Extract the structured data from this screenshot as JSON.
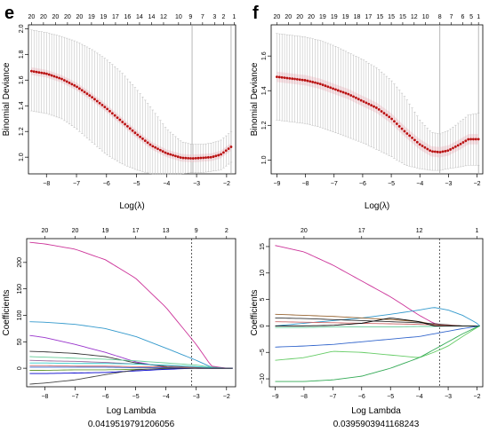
{
  "panels": {
    "e": {
      "letter": "e"
    },
    "f": {
      "letter": "f"
    }
  },
  "chart_data": [
    {
      "id": "e",
      "type": "scatter",
      "title": "",
      "xlabel": "Log(λ)",
      "ylabel": "Binomial Deviance",
      "xlim": [
        -8.6,
        -1.7
      ],
      "ylim": [
        0.87,
        2.03
      ],
      "x_ticks": [
        -8,
        -7,
        -6,
        -5,
        -4,
        -3,
        -2
      ],
      "y_ticks": [
        1.0,
        1.2,
        1.4,
        1.6,
        1.8,
        2.0
      ],
      "y_tick_labels": [
        "1.0",
        "1.2",
        "1.4",
        "1.6",
        "1.8",
        "2.0"
      ],
      "top_ticks": [
        {
          "x": -8.5,
          "label": "20"
        },
        {
          "x": -8.1,
          "label": "20"
        },
        {
          "x": -7.7,
          "label": "20"
        },
        {
          "x": -7.3,
          "label": "20"
        },
        {
          "x": -6.9,
          "label": "20"
        },
        {
          "x": -6.5,
          "label": "19"
        },
        {
          "x": -6.1,
          "label": "19"
        },
        {
          "x": -5.7,
          "label": "17"
        },
        {
          "x": -5.3,
          "label": "16"
        },
        {
          "x": -4.9,
          "label": "14"
        },
        {
          "x": -4.5,
          "label": "14"
        },
        {
          "x": -4.1,
          "label": "12"
        },
        {
          "x": -3.6,
          "label": "10"
        },
        {
          "x": -3.2,
          "label": "9"
        },
        {
          "x": -2.8,
          "label": "7"
        },
        {
          "x": -2.4,
          "label": "3"
        },
        {
          "x": -2.1,
          "label": "2"
        },
        {
          "x": -1.75,
          "label": "1"
        }
      ],
      "vlines": [
        -3.15,
        -1.85
      ],
      "curve": {
        "x": [
          -8.5,
          -8.0,
          -7.5,
          -7.0,
          -6.5,
          -6.0,
          -5.5,
          -5.0,
          -4.5,
          -4.0,
          -3.5,
          -3.15,
          -2.8,
          -2.5,
          -2.2,
          -1.85
        ],
        "mean": [
          1.67,
          1.65,
          1.61,
          1.55,
          1.47,
          1.38,
          1.28,
          1.18,
          1.09,
          1.03,
          0.995,
          0.99,
          0.995,
          1.0,
          1.02,
          1.08
        ],
        "upper": [
          1.99,
          1.97,
          1.94,
          1.9,
          1.84,
          1.76,
          1.66,
          1.53,
          1.38,
          1.22,
          1.12,
          1.1,
          1.1,
          1.11,
          1.13,
          1.2
        ],
        "lower": [
          1.36,
          1.34,
          1.3,
          1.22,
          1.12,
          1.02,
          0.95,
          0.9,
          0.87,
          0.87,
          0.87,
          0.88,
          0.88,
          0.89,
          0.9,
          0.96
        ]
      }
    },
    {
      "id": "f",
      "type": "scatter",
      "title": "",
      "xlabel": "Log(λ)",
      "ylabel": "Binomial Deviance",
      "xlim": [
        -9.2,
        -1.8
      ],
      "ylim": [
        0.92,
        1.78
      ],
      "x_ticks": [
        -9,
        -8,
        -7,
        -6,
        -5,
        -4,
        -3,
        -2
      ],
      "y_ticks": [
        1.0,
        1.2,
        1.4,
        1.6
      ],
      "y_tick_labels": [
        "1.0",
        "1.2",
        "1.4",
        "1.6"
      ],
      "top_ticks": [
        {
          "x": -9.0,
          "label": "20"
        },
        {
          "x": -8.6,
          "label": "20"
        },
        {
          "x": -8.2,
          "label": "20"
        },
        {
          "x": -7.8,
          "label": "20"
        },
        {
          "x": -7.4,
          "label": "19"
        },
        {
          "x": -7.0,
          "label": "19"
        },
        {
          "x": -6.6,
          "label": "19"
        },
        {
          "x": -6.2,
          "label": "18"
        },
        {
          "x": -5.8,
          "label": "17"
        },
        {
          "x": -5.4,
          "label": "15"
        },
        {
          "x": -5.0,
          "label": "15"
        },
        {
          "x": -4.6,
          "label": "15"
        },
        {
          "x": -4.2,
          "label": "12"
        },
        {
          "x": -3.8,
          "label": "10"
        },
        {
          "x": -3.3,
          "label": "8"
        },
        {
          "x": -2.9,
          "label": "7"
        },
        {
          "x": -2.5,
          "label": "6"
        },
        {
          "x": -2.2,
          "label": "5"
        },
        {
          "x": -1.95,
          "label": "1"
        }
      ],
      "vlines": [
        -3.3,
        -1.95
      ],
      "curve": {
        "x": [
          -9.0,
          -8.5,
          -8.0,
          -7.5,
          -7.0,
          -6.5,
          -6.0,
          -5.5,
          -5.0,
          -4.5,
          -4.0,
          -3.6,
          -3.3,
          -3.0,
          -2.6,
          -2.3,
          -1.95
        ],
        "mean": [
          1.48,
          1.47,
          1.46,
          1.44,
          1.41,
          1.38,
          1.34,
          1.3,
          1.24,
          1.16,
          1.09,
          1.05,
          1.045,
          1.055,
          1.09,
          1.12,
          1.12
        ],
        "upper": [
          1.73,
          1.72,
          1.71,
          1.69,
          1.66,
          1.62,
          1.58,
          1.53,
          1.46,
          1.36,
          1.23,
          1.16,
          1.15,
          1.17,
          1.22,
          1.26,
          1.27
        ],
        "lower": [
          1.23,
          1.22,
          1.21,
          1.19,
          1.16,
          1.13,
          1.1,
          1.06,
          1.02,
          0.97,
          0.95,
          0.94,
          0.94,
          0.95,
          0.96,
          0.97,
          0.97
        ]
      }
    },
    {
      "id": "g",
      "type": "line",
      "title": "",
      "xlabel": "Log Lambda",
      "ylabel": "Coefficients",
      "subtitle": "0.0419519791206056",
      "xlim": [
        -8.6,
        -1.7
      ],
      "ylim": [
        -35,
        245
      ],
      "x_ticks": [
        -8,
        -7,
        -6,
        -5,
        -4,
        -3,
        -2
      ],
      "y_ticks": [
        0,
        50,
        100,
        150,
        200
      ],
      "top_ticks": [
        {
          "x": -8.0,
          "label": "20"
        },
        {
          "x": -7.0,
          "label": "20"
        },
        {
          "x": -6.0,
          "label": "19"
        },
        {
          "x": -5.0,
          "label": "17"
        },
        {
          "x": -4.0,
          "label": "13"
        },
        {
          "x": -3.0,
          "label": "9"
        },
        {
          "x": -2.0,
          "label": "2"
        }
      ],
      "vline": -3.15,
      "x": [
        -8.5,
        -8.0,
        -7.0,
        -6.0,
        -5.0,
        -4.0,
        -3.0,
        -2.5,
        -2.0,
        -1.8
      ],
      "series": [
        {
          "color": "#cc3399",
          "values": [
            238,
            235,
            225,
            205,
            170,
            115,
            45,
            4,
            0,
            0
          ]
        },
        {
          "color": "#3399cc",
          "values": [
            88,
            87,
            83,
            75,
            60,
            38,
            15,
            2,
            0,
            0
          ]
        },
        {
          "color": "#9933cc",
          "values": [
            62,
            58,
            45,
            30,
            12,
            2,
            0,
            0,
            0,
            0
          ]
        },
        {
          "color": "#333333",
          "values": [
            32,
            31,
            28,
            22,
            10,
            3,
            1,
            0,
            0,
            0
          ]
        },
        {
          "color": "#66cc99",
          "values": [
            22,
            21,
            19,
            17,
            14,
            10,
            6,
            2,
            0,
            0
          ]
        },
        {
          "color": "#996699",
          "values": [
            15,
            14,
            13,
            11,
            8,
            5,
            2,
            0,
            0,
            0
          ]
        },
        {
          "color": "#33cccc",
          "values": [
            10,
            10,
            9,
            9,
            8,
            6,
            3,
            1,
            0,
            0
          ]
        },
        {
          "color": "#cc6666",
          "values": [
            5,
            5,
            4,
            4,
            3,
            2,
            1,
            0,
            0,
            0
          ]
        },
        {
          "color": "#3366cc",
          "values": [
            2,
            2,
            2,
            2,
            1,
            1,
            0,
            0,
            0,
            0
          ]
        },
        {
          "color": "#669933",
          "values": [
            -4,
            -4,
            -3,
            -3,
            -2,
            -1,
            0,
            0,
            0,
            0
          ]
        },
        {
          "color": "#0000cc",
          "values": [
            -10,
            -10,
            -9,
            -8,
            -5,
            -2,
            0,
            0,
            0,
            0
          ]
        },
        {
          "color": "#444444",
          "values": [
            -30,
            -28,
            -22,
            -12,
            -3,
            0,
            0,
            0,
            0,
            0
          ]
        }
      ]
    },
    {
      "id": "h",
      "type": "line",
      "title": "",
      "xlabel": "Log Lambda",
      "ylabel": "Coefficients",
      "subtitle": "0.0395903941168243",
      "xlim": [
        -9.2,
        -1.8
      ],
      "ylim": [
        -11.5,
        16.5
      ],
      "x_ticks": [
        -9,
        -8,
        -7,
        -6,
        -5,
        -4,
        -3,
        -2
      ],
      "y_ticks": [
        -10,
        -5,
        0,
        5,
        10,
        15
      ],
      "top_ticks": [
        {
          "x": -8.0,
          "label": "20"
        },
        {
          "x": -6.0,
          "label": "17"
        },
        {
          "x": -4.0,
          "label": "12"
        },
        {
          "x": -2.0,
          "label": "1"
        }
      ],
      "vline": -3.3,
      "x": [
        -9.0,
        -8.0,
        -7.0,
        -6.0,
        -5.0,
        -4.0,
        -3.5,
        -3.0,
        -2.5,
        -2.0,
        -1.9
      ],
      "series": [
        {
          "color": "#cc3399",
          "values": [
            15.2,
            14.0,
            11.5,
            8.5,
            5.5,
            2.0,
            0.5,
            0.0,
            0.0,
            0.0,
            0.0
          ]
        },
        {
          "color": "#3399cc",
          "values": [
            0.0,
            0.5,
            1.0,
            1.5,
            2.2,
            3.0,
            3.5,
            3.0,
            2.0,
            0.5,
            0.0
          ]
        },
        {
          "color": "#996633",
          "values": [
            2.2,
            2.0,
            1.8,
            1.5,
            1.2,
            0.8,
            0.3,
            0.0,
            0.0,
            0.0,
            0.0
          ]
        },
        {
          "color": "#333333",
          "values": [
            1.5,
            1.4,
            1.2,
            1.0,
            0.8,
            0.6,
            0.4,
            0.2,
            0.0,
            0.0,
            0.0
          ]
        },
        {
          "color": "#cc6666",
          "values": [
            0.8,
            0.7,
            0.6,
            0.5,
            0.4,
            0.3,
            0.2,
            0.1,
            0.0,
            0.0,
            0.0
          ]
        },
        {
          "color": "#66cc99",
          "values": [
            -0.3,
            -0.3,
            -0.2,
            -0.2,
            -0.2,
            -0.1,
            -0.1,
            0.0,
            0.0,
            0.0,
            0.0
          ]
        },
        {
          "color": "#000000",
          "values": [
            0.0,
            0.0,
            0.1,
            0.5,
            1.5,
            0.8,
            0.0,
            0.0,
            0.0,
            0.0,
            0.0
          ]
        },
        {
          "color": "#3366cc",
          "values": [
            -4.0,
            -3.8,
            -3.5,
            -3.0,
            -2.5,
            -2.0,
            -1.5,
            -1.0,
            -0.5,
            -0.1,
            0.0
          ]
        },
        {
          "color": "#66cc66",
          "values": [
            -6.5,
            -6.0,
            -4.8,
            -5.0,
            -5.5,
            -6.0,
            -5.0,
            -3.8,
            -2.0,
            -0.3,
            0.0
          ]
        },
        {
          "color": "#33aa55",
          "values": [
            -10.5,
            -10.5,
            -10.2,
            -9.5,
            -8.0,
            -6.0,
            -4.5,
            -3.0,
            -1.5,
            -0.2,
            0.0
          ]
        }
      ]
    }
  ]
}
